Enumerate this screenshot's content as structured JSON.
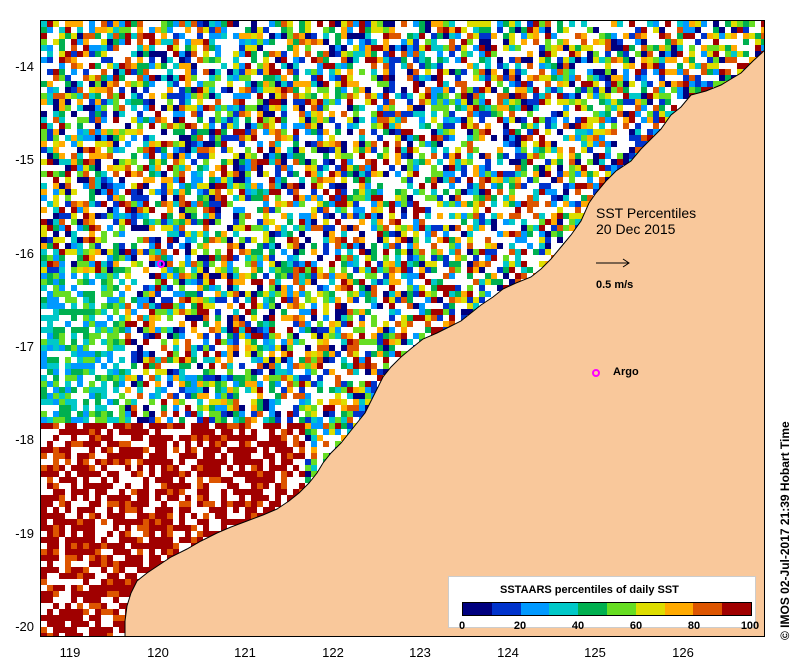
{
  "map": {
    "title_line1": "SST Percentiles",
    "title_line2": "20 Dec 2015",
    "vector_scale_label": "0.5 m/s",
    "argo_label": "Argo",
    "credit": "© IMOS 02-Jul-2017 21:39 Hobart Time",
    "y_ticks": [
      "-14",
      "-15",
      "-16",
      "-17",
      "-18",
      "-19",
      "-20"
    ],
    "x_ticks": [
      "119",
      "120",
      "121",
      "122",
      "123",
      "124",
      "125",
      "126"
    ],
    "colors": {
      "land": "#f9c89b",
      "coast": "#000000",
      "argo": "#ff00ff",
      "vector": "#00e5e5"
    }
  },
  "legend": {
    "title": "SSTAARS percentiles of daily SST",
    "tick_labels": [
      "0",
      "20",
      "40",
      "60",
      "80",
      "100"
    ],
    "colors": [
      "#00007f",
      "#0033cc",
      "#0099ff",
      "#00c8c8",
      "#00b050",
      "#66dd22",
      "#dddd00",
      "#ffaa00",
      "#dd5500",
      "#a00000"
    ]
  }
}
